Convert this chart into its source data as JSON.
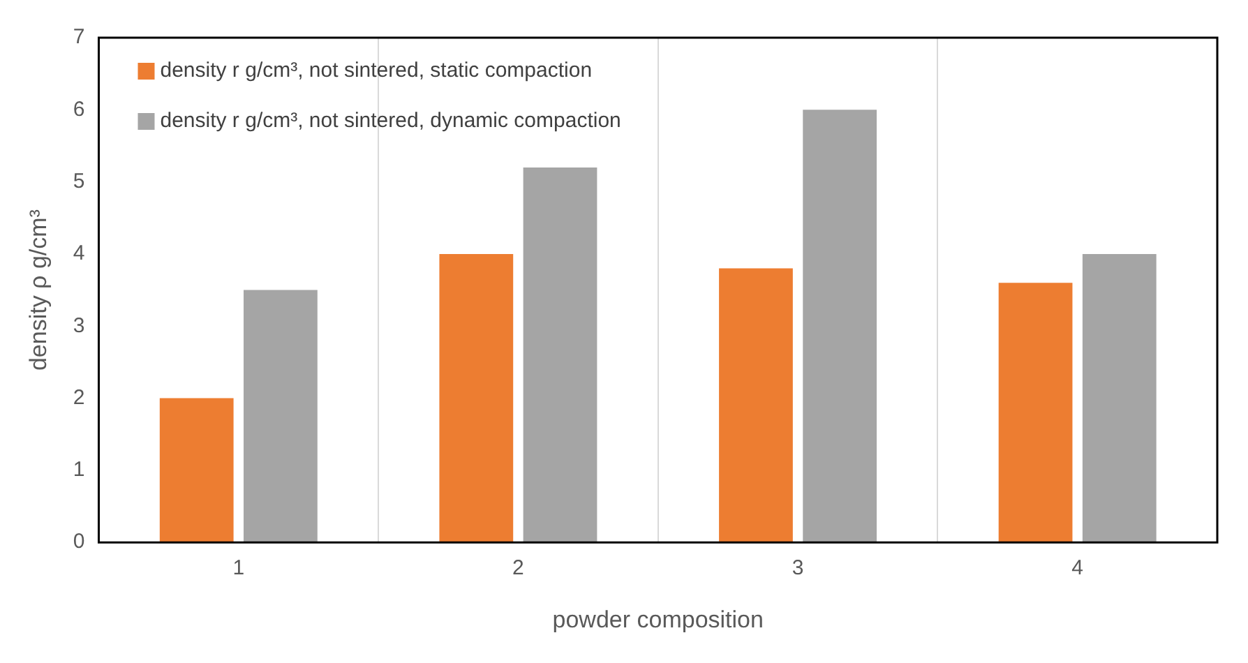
{
  "chart_data": {
    "type": "bar",
    "xlabel": "powder composition",
    "ylabel": "density ρ g/cm³",
    "categories": [
      "1",
      "2",
      "3",
      "4"
    ],
    "series": [
      {
        "name": "density r g/cm³, not sintered, static compaction",
        "color": "#ed7d31",
        "values": [
          2,
          4,
          3.8,
          3.6
        ]
      },
      {
        "name": "density r g/cm³, not sintered, dynamic compaction",
        "color": "#a5a5a5",
        "values": [
          3.5,
          5.2,
          6,
          4
        ]
      }
    ],
    "ylim": [
      0,
      7
    ],
    "yticks": [
      0,
      1,
      2,
      3,
      4,
      5,
      6,
      7
    ],
    "grid": "x",
    "legend": "top left"
  }
}
